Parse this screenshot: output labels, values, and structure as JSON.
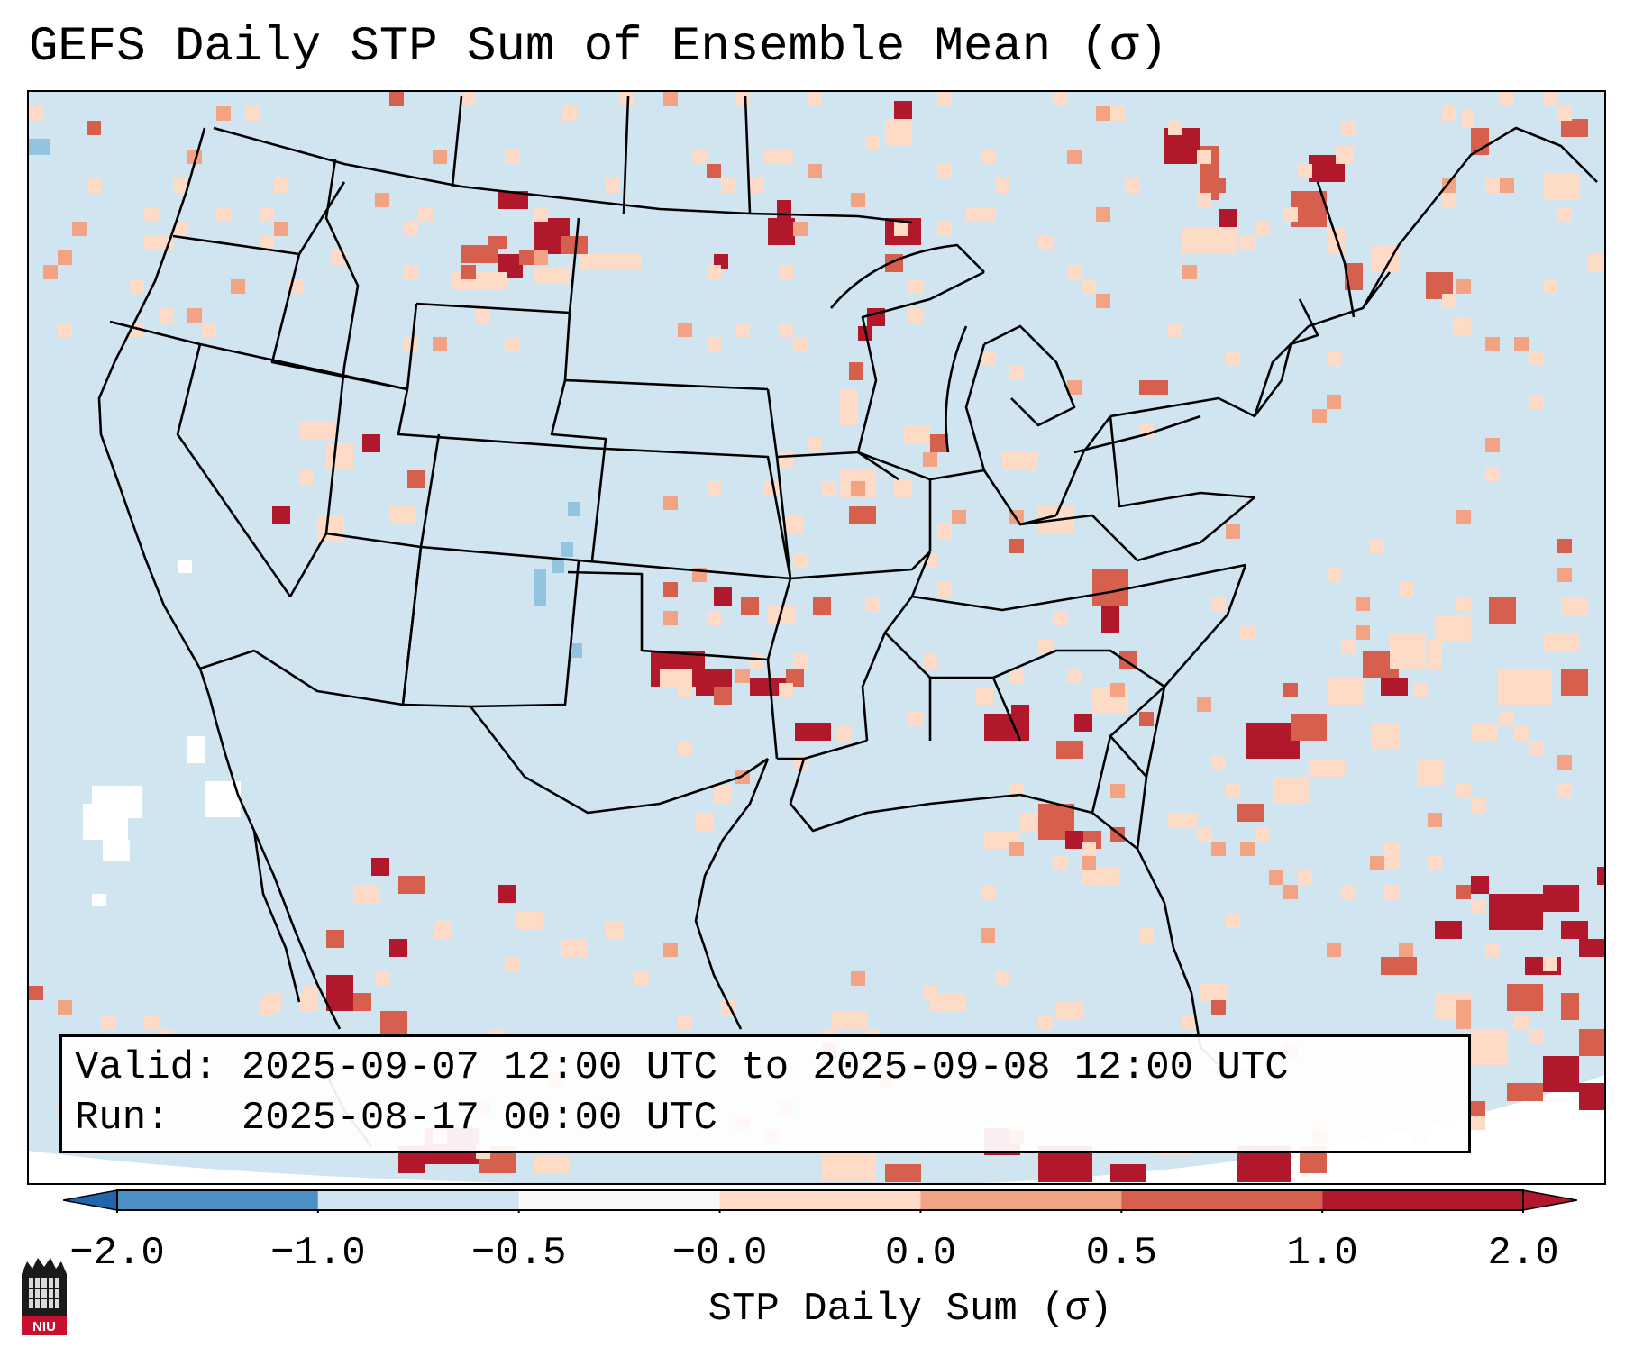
{
  "title": "GEFS Daily STP Sum of Ensemble Mean (σ)",
  "info": {
    "valid_prefix": "Valid:",
    "valid_value": "2025-09-07 12:00 UTC to 2025-09-08 12:00 UTC",
    "run_prefix": "Run:",
    "run_value": "2025-08-17 00:00 UTC"
  },
  "colorbar": {
    "label": "STP Daily Sum (σ)",
    "ticks": [
      "−2.0",
      "−1.0",
      "−0.5",
      "−0.0",
      "0.0",
      "0.5",
      "1.0",
      "2.0"
    ],
    "colors": [
      "#4a90c4",
      "#92c4df",
      "#d1e5f0",
      "#f7f7f7",
      "#fddbc7",
      "#f2a383",
      "#d6604d",
      "#b2182b"
    ],
    "extend_low_color": "#2166ac",
    "extend_high_color": "#b2182b"
  },
  "map": {
    "background_color": "#d1e5f0",
    "outline_color": "#000000",
    "logo": "NIU"
  }
}
